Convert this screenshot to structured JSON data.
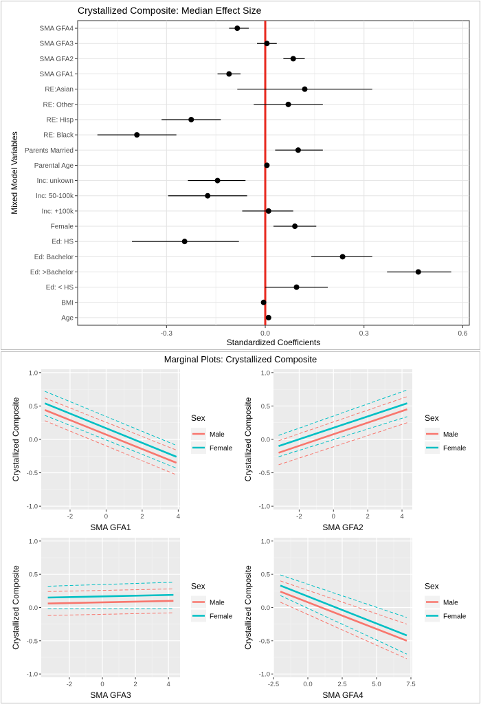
{
  "chart_data": [
    {
      "id": "forest",
      "type": "scatter",
      "subtype": "coefficient-forest-plot",
      "title": "Crystallized Composite: Median Effect Size",
      "xlabel": "Standardized Coefficients",
      "ylabel": "Mixed Model Variables",
      "xlim": [
        -0.57,
        0.62
      ],
      "xticks": [
        -0.3,
        0.0,
        0.3,
        0.6
      ],
      "xtick_labels": [
        "-0.3",
        "0.0",
        "0.3",
        "0.6"
      ],
      "reference_line": {
        "x": 0,
        "color": "#e8281e"
      },
      "grid": true,
      "items": [
        {
          "label": "SMA GFA4",
          "estimate": -0.085,
          "lower": -0.11,
          "upper": -0.05
        },
        {
          "label": "SMA GFA3",
          "estimate": 0.005,
          "lower": -0.025,
          "upper": 0.035
        },
        {
          "label": "SMA GFA2",
          "estimate": 0.085,
          "lower": 0.055,
          "upper": 0.12
        },
        {
          "label": "SMA GFA1",
          "estimate": -0.11,
          "lower": -0.145,
          "upper": -0.075
        },
        {
          "label": "RE:Asian",
          "estimate": 0.12,
          "lower": -0.085,
          "upper": 0.325
        },
        {
          "label": "RE: Other",
          "estimate": 0.07,
          "lower": -0.035,
          "upper": 0.175
        },
        {
          "label": "RE: Hisp",
          "estimate": -0.225,
          "lower": -0.315,
          "upper": -0.135
        },
        {
          "label": "RE: Black",
          "estimate": -0.39,
          "lower": -0.51,
          "upper": -0.27
        },
        {
          "label": "Parents Married",
          "estimate": 0.1,
          "lower": 0.03,
          "upper": 0.175
        },
        {
          "label": "Parental Age",
          "estimate": 0.005,
          "lower": -0.002,
          "upper": 0.012
        },
        {
          "label": "Inc: unkown",
          "estimate": -0.145,
          "lower": -0.235,
          "upper": -0.06
        },
        {
          "label": "Inc: 50-100k",
          "estimate": -0.175,
          "lower": -0.295,
          "upper": -0.055
        },
        {
          "label": "Inc: +100k",
          "estimate": 0.01,
          "lower": -0.07,
          "upper": 0.085
        },
        {
          "label": "Female",
          "estimate": 0.09,
          "lower": 0.025,
          "upper": 0.155
        },
        {
          "label": "Ed: HS",
          "estimate": -0.245,
          "lower": -0.405,
          "upper": -0.08
        },
        {
          "label": "Ed: Bachelor",
          "estimate": 0.235,
          "lower": 0.14,
          "upper": 0.325
        },
        {
          "label": "Ed: >Bachelor",
          "estimate": 0.465,
          "lower": 0.37,
          "upper": 0.565
        },
        {
          "label": "Ed: < HS",
          "estimate": 0.095,
          "lower": 0.0,
          "upper": 0.19
        },
        {
          "label": "BMI",
          "estimate": -0.005,
          "lower": -0.012,
          "upper": 0.002
        },
        {
          "label": "Age",
          "estimate": 0.01,
          "lower": 0.003,
          "upper": 0.017
        }
      ]
    },
    {
      "id": "marginal",
      "type": "line",
      "subtype": "marginal-effects-panels",
      "title": "Marginal Plots: Crystallized Composite",
      "legend_title": "Sex",
      "legend_entries": [
        {
          "label": "Male",
          "color": "#f8766d"
        },
        {
          "label": "Female",
          "color": "#00bfc4"
        }
      ],
      "ylabel": "Crystallized Composite",
      "ylim": [
        -1.05,
        1.05
      ],
      "yticks": [
        -1.0,
        -0.5,
        0.0,
        0.5,
        1.0
      ],
      "ytick_labels": [
        "-1.0",
        "-0.5",
        "0.0",
        "0.5",
        "1.0"
      ],
      "panels": [
        {
          "xlabel": "SMA GFA1",
          "xlim": [
            -3.6,
            4.1
          ],
          "xticks": [
            -2,
            0,
            2,
            4
          ],
          "xtick_labels": [
            "-2",
            "0",
            "2",
            "4"
          ],
          "series": [
            {
              "name": "Male",
              "x": [
                -3.4,
                3.9
              ],
              "y": [
                0.44,
                -0.35
              ],
              "lower": [
                0.28,
                -0.53
              ],
              "upper": [
                0.62,
                -0.16
              ]
            },
            {
              "name": "Female",
              "x": [
                -3.4,
                3.9
              ],
              "y": [
                0.54,
                -0.26
              ],
              "lower": [
                0.36,
                -0.43
              ],
              "upper": [
                0.72,
                -0.09
              ]
            }
          ]
        },
        {
          "xlabel": "SMA GFA2",
          "xlim": [
            -3.5,
            4.6
          ],
          "xticks": [
            -2,
            0,
            2,
            4
          ],
          "xtick_labels": [
            "-2",
            "0",
            "2",
            "4"
          ],
          "series": [
            {
              "name": "Male",
              "x": [
                -3.2,
                4.3
              ],
              "y": [
                -0.2,
                0.45
              ],
              "lower": [
                -0.38,
                0.25
              ],
              "upper": [
                -0.02,
                0.64
              ]
            },
            {
              "name": "Female",
              "x": [
                -3.2,
                4.3
              ],
              "y": [
                -0.1,
                0.54
              ],
              "lower": [
                -0.26,
                0.34
              ],
              "upper": [
                0.06,
                0.74
              ]
            }
          ]
        },
        {
          "xlabel": "SMA GFA3",
          "xlim": [
            -3.7,
            4.7
          ],
          "xticks": [
            -2,
            0,
            2,
            4
          ],
          "xtick_labels": [
            "-2",
            "0",
            "2",
            "4"
          ],
          "series": [
            {
              "name": "Male",
              "x": [
                -3.3,
                4.3
              ],
              "y": [
                0.06,
                0.1
              ],
              "lower": [
                -0.12,
                -0.08
              ],
              "upper": [
                0.24,
                0.28
              ]
            },
            {
              "name": "Female",
              "x": [
                -3.3,
                4.3
              ],
              "y": [
                0.15,
                0.19
              ],
              "lower": [
                -0.02,
                -0.02
              ],
              "upper": [
                0.32,
                0.38
              ]
            }
          ]
        },
        {
          "xlabel": "SMA GFA4",
          "xlim": [
            -2.5,
            7.6
          ],
          "xticks": [
            -2.5,
            0.0,
            2.5,
            5.0,
            7.5
          ],
          "xtick_labels": [
            "-2.5",
            "0.0",
            "2.5",
            "5.0",
            "7.5"
          ],
          "series": [
            {
              "name": "Male",
              "x": [
                -2.0,
                7.2
              ],
              "y": [
                0.24,
                -0.5
              ],
              "lower": [
                0.08,
                -0.77
              ],
              "upper": [
                0.4,
                -0.25
              ]
            },
            {
              "name": "Female",
              "x": [
                -2.0,
                7.2
              ],
              "y": [
                0.33,
                -0.42
              ],
              "lower": [
                0.18,
                -0.7
              ],
              "upper": [
                0.49,
                -0.15
              ]
            }
          ]
        }
      ]
    }
  ]
}
